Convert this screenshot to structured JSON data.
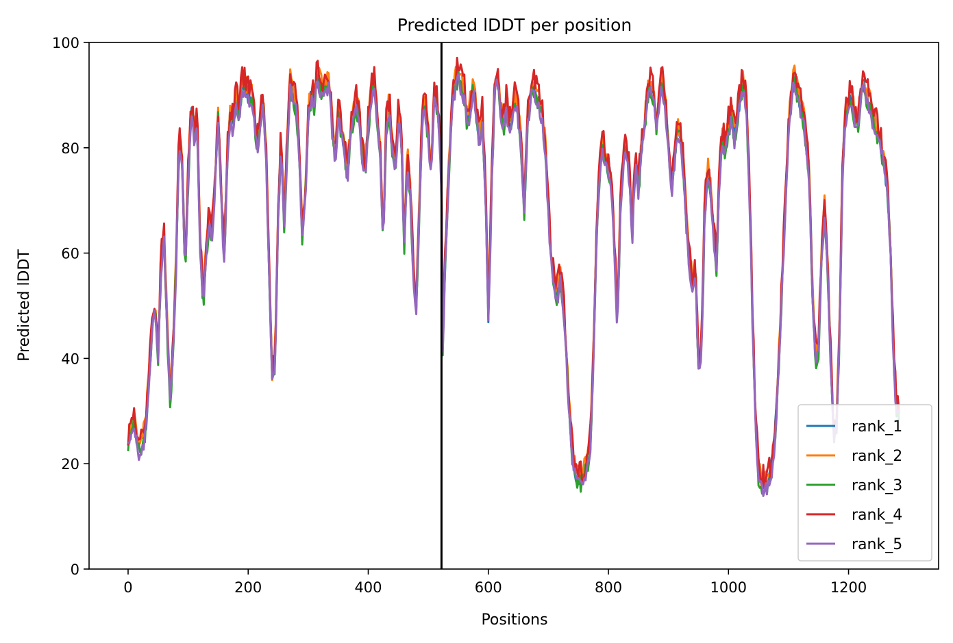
{
  "chart_data": {
    "type": "line",
    "title": "Predicted lDDT per position",
    "xlabel": "Positions",
    "ylabel": "Predicted lDDT",
    "xlim": [
      -65,
      1350
    ],
    "ylim": [
      0,
      100
    ],
    "xticks": [
      0,
      200,
      400,
      600,
      800,
      1000,
      1200
    ],
    "yticks": [
      0,
      20,
      40,
      60,
      80,
      100
    ],
    "grid": false,
    "legend_position": "lower-right",
    "chain_boundary_x": 522,
    "base_profile": [
      [
        0,
        24
      ],
      [
        5,
        26
      ],
      [
        10,
        29
      ],
      [
        15,
        24
      ],
      [
        20,
        22
      ],
      [
        25,
        24
      ],
      [
        30,
        28
      ],
      [
        35,
        37
      ],
      [
        40,
        46
      ],
      [
        45,
        50
      ],
      [
        50,
        40
      ],
      [
        55,
        58
      ],
      [
        60,
        63
      ],
      [
        65,
        46
      ],
      [
        70,
        32
      ],
      [
        75,
        42
      ],
      [
        80,
        58
      ],
      [
        85,
        82
      ],
      [
        90,
        78
      ],
      [
        95,
        56
      ],
      [
        100,
        74
      ],
      [
        105,
        88
      ],
      [
        110,
        82
      ],
      [
        115,
        86
      ],
      [
        120,
        62
      ],
      [
        125,
        50
      ],
      [
        130,
        60
      ],
      [
        135,
        66
      ],
      [
        140,
        64
      ],
      [
        145,
        74
      ],
      [
        150,
        86
      ],
      [
        155,
        72
      ],
      [
        160,
        58
      ],
      [
        165,
        78
      ],
      [
        170,
        86
      ],
      [
        175,
        84
      ],
      [
        180,
        90
      ],
      [
        185,
        86
      ],
      [
        190,
        92
      ],
      [
        195,
        92
      ],
      [
        200,
        90
      ],
      [
        205,
        90
      ],
      [
        210,
        86
      ],
      [
        215,
        80
      ],
      [
        220,
        84
      ],
      [
        225,
        90
      ],
      [
        230,
        78
      ],
      [
        235,
        56
      ],
      [
        240,
        36
      ],
      [
        245,
        40
      ],
      [
        250,
        68
      ],
      [
        255,
        82
      ],
      [
        260,
        66
      ],
      [
        265,
        80
      ],
      [
        270,
        92
      ],
      [
        275,
        90
      ],
      [
        280,
        88
      ],
      [
        285,
        80
      ],
      [
        290,
        64
      ],
      [
        295,
        70
      ],
      [
        300,
        86
      ],
      [
        305,
        90
      ],
      [
        310,
        88
      ],
      [
        315,
        94
      ],
      [
        320,
        92
      ],
      [
        325,
        90
      ],
      [
        330,
        92
      ],
      [
        335,
        92
      ],
      [
        340,
        84
      ],
      [
        345,
        78
      ],
      [
        350,
        86
      ],
      [
        355,
        84
      ],
      [
        360,
        80
      ],
      [
        365,
        74
      ],
      [
        370,
        82
      ],
      [
        375,
        86
      ],
      [
        380,
        88
      ],
      [
        385,
        86
      ],
      [
        390,
        78
      ],
      [
        395,
        76
      ],
      [
        400,
        84
      ],
      [
        405,
        90
      ],
      [
        410,
        92
      ],
      [
        415,
        86
      ],
      [
        420,
        78
      ],
      [
        425,
        62
      ],
      [
        430,
        84
      ],
      [
        435,
        88
      ],
      [
        440,
        80
      ],
      [
        445,
        76
      ],
      [
        450,
        86
      ],
      [
        455,
        82
      ],
      [
        460,
        62
      ],
      [
        465,
        78
      ],
      [
        470,
        72
      ],
      [
        475,
        56
      ],
      [
        480,
        50
      ],
      [
        485,
        68
      ],
      [
        490,
        86
      ],
      [
        495,
        88
      ],
      [
        500,
        82
      ],
      [
        505,
        76
      ],
      [
        510,
        90
      ],
      [
        515,
        88
      ],
      [
        520,
        80
      ],
      [
        522,
        72
      ],
      [
        524,
        42
      ],
      [
        528,
        58
      ],
      [
        532,
        70
      ],
      [
        536,
        80
      ],
      [
        540,
        88
      ],
      [
        545,
        92
      ],
      [
        550,
        94
      ],
      [
        555,
        92
      ],
      [
        560,
        90
      ],
      [
        565,
        84
      ],
      [
        570,
        88
      ],
      [
        575,
        92
      ],
      [
        580,
        86
      ],
      [
        585,
        82
      ],
      [
        590,
        86
      ],
      [
        595,
        72
      ],
      [
        600,
        48
      ],
      [
        605,
        70
      ],
      [
        610,
        90
      ],
      [
        615,
        94
      ],
      [
        620,
        88
      ],
      [
        625,
        84
      ],
      [
        630,
        88
      ],
      [
        635,
        84
      ],
      [
        640,
        86
      ],
      [
        645,
        90
      ],
      [
        650,
        86
      ],
      [
        655,
        80
      ],
      [
        660,
        68
      ],
      [
        665,
        84
      ],
      [
        670,
        90
      ],
      [
        675,
        92
      ],
      [
        680,
        90
      ],
      [
        685,
        88
      ],
      [
        690,
        86
      ],
      [
        695,
        80
      ],
      [
        700,
        68
      ],
      [
        705,
        58
      ],
      [
        710,
        54
      ],
      [
        715,
        52
      ],
      [
        720,
        56
      ],
      [
        725,
        50
      ],
      [
        730,
        40
      ],
      [
        735,
        30
      ],
      [
        740,
        22
      ],
      [
        745,
        18
      ],
      [
        750,
        17
      ],
      [
        755,
        17
      ],
      [
        760,
        18
      ],
      [
        765,
        20
      ],
      [
        770,
        24
      ],
      [
        775,
        40
      ],
      [
        780,
        62
      ],
      [
        785,
        76
      ],
      [
        790,
        80
      ],
      [
        795,
        78
      ],
      [
        800,
        76
      ],
      [
        805,
        74
      ],
      [
        810,
        62
      ],
      [
        815,
        46
      ],
      [
        820,
        68
      ],
      [
        825,
        78
      ],
      [
        830,
        80
      ],
      [
        835,
        74
      ],
      [
        840,
        64
      ],
      [
        845,
        78
      ],
      [
        850,
        72
      ],
      [
        855,
        80
      ],
      [
        860,
        84
      ],
      [
        865,
        90
      ],
      [
        870,
        92
      ],
      [
        875,
        90
      ],
      [
        880,
        84
      ],
      [
        885,
        90
      ],
      [
        890,
        92
      ],
      [
        895,
        88
      ],
      [
        900,
        80
      ],
      [
        905,
        72
      ],
      [
        910,
        78
      ],
      [
        915,
        84
      ],
      [
        920,
        82
      ],
      [
        925,
        76
      ],
      [
        930,
        66
      ],
      [
        935,
        58
      ],
      [
        940,
        54
      ],
      [
        945,
        58
      ],
      [
        950,
        38
      ],
      [
        955,
        40
      ],
      [
        960,
        66
      ],
      [
        965,
        76
      ],
      [
        970,
        72
      ],
      [
        975,
        64
      ],
      [
        980,
        58
      ],
      [
        985,
        74
      ],
      [
        990,
        82
      ],
      [
        995,
        80
      ],
      [
        1000,
        84
      ],
      [
        1005,
        86
      ],
      [
        1010,
        82
      ],
      [
        1015,
        86
      ],
      [
        1020,
        90
      ],
      [
        1025,
        92
      ],
      [
        1030,
        88
      ],
      [
        1035,
        72
      ],
      [
        1040,
        48
      ],
      [
        1045,
        28
      ],
      [
        1050,
        18
      ],
      [
        1055,
        16
      ],
      [
        1060,
        16
      ],
      [
        1065,
        16
      ],
      [
        1070,
        18
      ],
      [
        1075,
        22
      ],
      [
        1080,
        30
      ],
      [
        1085,
        42
      ],
      [
        1090,
        56
      ],
      [
        1095,
        70
      ],
      [
        1100,
        84
      ],
      [
        1105,
        90
      ],
      [
        1110,
        94
      ],
      [
        1115,
        90
      ],
      [
        1120,
        88
      ],
      [
        1125,
        86
      ],
      [
        1130,
        80
      ],
      [
        1135,
        74
      ],
      [
        1140,
        52
      ],
      [
        1145,
        40
      ],
      [
        1150,
        42
      ],
      [
        1155,
        60
      ],
      [
        1160,
        68
      ],
      [
        1165,
        58
      ],
      [
        1170,
        40
      ],
      [
        1175,
        26
      ],
      [
        1180,
        28
      ],
      [
        1185,
        44
      ],
      [
        1190,
        76
      ],
      [
        1195,
        86
      ],
      [
        1200,
        88
      ],
      [
        1205,
        90
      ],
      [
        1210,
        86
      ],
      [
        1215,
        84
      ],
      [
        1220,
        90
      ],
      [
        1225,
        92
      ],
      [
        1230,
        90
      ],
      [
        1235,
        88
      ],
      [
        1240,
        86
      ],
      [
        1245,
        84
      ],
      [
        1250,
        82
      ],
      [
        1255,
        80
      ],
      [
        1260,
        76
      ],
      [
        1265,
        72
      ],
      [
        1270,
        60
      ],
      [
        1275,
        40
      ],
      [
        1280,
        30
      ],
      [
        1285,
        30
      ]
    ],
    "series": [
      {
        "name": "rank_1",
        "color": "#1f77b4",
        "offset": 0.0,
        "amplitude": 1.5,
        "seed": 1
      },
      {
        "name": "rank_2",
        "color": "#ff7f0e",
        "offset": 1.2,
        "amplitude": 1.8,
        "seed": 2
      },
      {
        "name": "rank_3",
        "color": "#2ca02c",
        "offset": -0.6,
        "amplitude": 1.8,
        "seed": 3
      },
      {
        "name": "rank_4",
        "color": "#d62728",
        "offset": 1.6,
        "amplitude": 2.4,
        "seed": 4
      },
      {
        "name": "rank_5",
        "color": "#9467bd",
        "offset": -1.0,
        "amplitude": 1.4,
        "seed": 5
      }
    ]
  }
}
